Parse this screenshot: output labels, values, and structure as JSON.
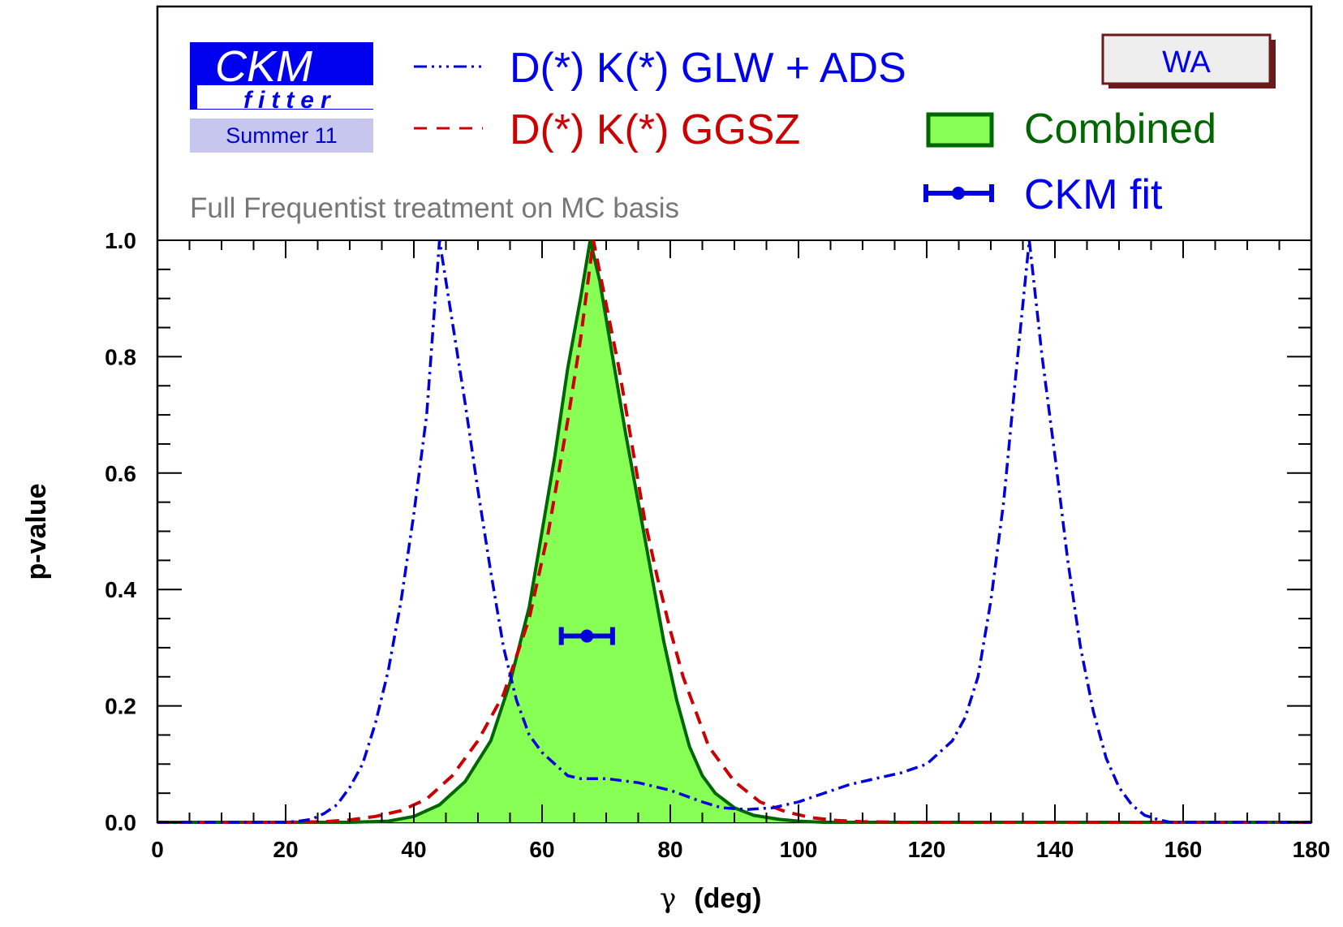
{
  "chart_data": {
    "type": "line",
    "xlabel_symbol": "γ",
    "xlabel_unit": "(deg)",
    "ylabel": "p-value",
    "xlim": [
      0,
      180
    ],
    "ylim": [
      0,
      1.0
    ],
    "xticks": [
      "0",
      "20",
      "40",
      "60",
      "80",
      "100",
      "120",
      "140",
      "160",
      "180"
    ],
    "yticks": [
      "0.0",
      "0.2",
      "0.4",
      "0.6",
      "0.8",
      "1.0"
    ],
    "grid": false,
    "logo": {
      "top": "CKM",
      "bottom": "fitter",
      "badge": "Summer 11"
    },
    "tag": "WA",
    "note": "Full Frequentist treatment on MC basis",
    "legend_position": "top",
    "series": [
      {
        "name": "D(*) K(*) GLW + ADS",
        "style": "dash-dot",
        "color": "#0000dd",
        "points": [
          [
            0,
            0
          ],
          [
            20,
            0
          ],
          [
            22,
            0.002
          ],
          [
            24,
            0.005
          ],
          [
            26,
            0.015
          ],
          [
            28,
            0.03
          ],
          [
            30,
            0.06
          ],
          [
            32,
            0.1
          ],
          [
            34,
            0.17
          ],
          [
            36,
            0.26
          ],
          [
            38,
            0.38
          ],
          [
            40,
            0.53
          ],
          [
            42,
            0.7
          ],
          [
            43,
            0.85
          ],
          [
            44,
            1.0
          ],
          [
            45,
            0.93
          ],
          [
            46,
            0.86
          ],
          [
            48,
            0.72
          ],
          [
            50,
            0.57
          ],
          [
            52,
            0.43
          ],
          [
            54,
            0.3
          ],
          [
            56,
            0.21
          ],
          [
            58,
            0.15
          ],
          [
            60,
            0.12
          ],
          [
            62,
            0.1
          ],
          [
            64,
            0.08
          ],
          [
            66,
            0.075
          ],
          [
            70,
            0.075
          ],
          [
            75,
            0.068
          ],
          [
            80,
            0.055
          ],
          [
            85,
            0.035
          ],
          [
            88,
            0.025
          ],
          [
            92,
            0.022
          ],
          [
            96,
            0.025
          ],
          [
            100,
            0.035
          ],
          [
            104,
            0.05
          ],
          [
            108,
            0.065
          ],
          [
            112,
            0.075
          ],
          [
            116,
            0.085
          ],
          [
            120,
            0.1
          ],
          [
            124,
            0.14
          ],
          [
            126,
            0.18
          ],
          [
            128,
            0.25
          ],
          [
            130,
            0.38
          ],
          [
            132,
            0.55
          ],
          [
            134,
            0.78
          ],
          [
            136,
            1.0
          ],
          [
            137,
            0.9
          ],
          [
            138,
            0.8
          ],
          [
            140,
            0.63
          ],
          [
            142,
            0.45
          ],
          [
            144,
            0.3
          ],
          [
            146,
            0.19
          ],
          [
            148,
            0.11
          ],
          [
            150,
            0.06
          ],
          [
            152,
            0.03
          ],
          [
            154,
            0.012
          ],
          [
            156,
            0.005
          ],
          [
            158,
            0
          ],
          [
            180,
            0
          ]
        ]
      },
      {
        "name": "D(*) K(*) GGSZ",
        "style": "dashed",
        "color": "#cc0000",
        "points": [
          [
            0,
            0
          ],
          [
            20,
            0
          ],
          [
            26,
            0.001
          ],
          [
            30,
            0.004
          ],
          [
            34,
            0.01
          ],
          [
            38,
            0.02
          ],
          [
            42,
            0.04
          ],
          [
            46,
            0.08
          ],
          [
            50,
            0.14
          ],
          [
            54,
            0.22
          ],
          [
            58,
            0.35
          ],
          [
            61,
            0.5
          ],
          [
            64,
            0.69
          ],
          [
            66,
            0.83
          ],
          [
            68,
            1.0
          ],
          [
            70,
            0.89
          ],
          [
            72,
            0.78
          ],
          [
            74,
            0.65
          ],
          [
            76,
            0.52
          ],
          [
            78,
            0.42
          ],
          [
            80,
            0.33
          ],
          [
            82,
            0.25
          ],
          [
            84,
            0.19
          ],
          [
            86,
            0.13
          ],
          [
            90,
            0.07
          ],
          [
            94,
            0.035
          ],
          [
            98,
            0.018
          ],
          [
            102,
            0.008
          ],
          [
            106,
            0.003
          ],
          [
            110,
            0.001
          ],
          [
            116,
            0
          ],
          [
            180,
            0
          ]
        ]
      },
      {
        "name": "Combined",
        "style": "filled",
        "color": "#006600",
        "fill": "#88ff55",
        "points": [
          [
            0,
            0
          ],
          [
            30,
            0
          ],
          [
            36,
            0.002
          ],
          [
            40,
            0.01
          ],
          [
            44,
            0.03
          ],
          [
            48,
            0.07
          ],
          [
            52,
            0.14
          ],
          [
            55,
            0.24
          ],
          [
            58,
            0.37
          ],
          [
            60,
            0.5
          ],
          [
            62,
            0.63
          ],
          [
            64,
            0.78
          ],
          [
            66,
            0.9
          ],
          [
            67.5,
            1.0
          ],
          [
            69,
            0.93
          ],
          [
            71,
            0.8
          ],
          [
            73,
            0.67
          ],
          [
            75,
            0.55
          ],
          [
            77,
            0.43
          ],
          [
            79,
            0.31
          ],
          [
            81,
            0.21
          ],
          [
            83,
            0.13
          ],
          [
            85,
            0.08
          ],
          [
            87,
            0.05
          ],
          [
            90,
            0.025
          ],
          [
            93,
            0.012
          ],
          [
            97,
            0.005
          ],
          [
            100,
            0.002
          ],
          [
            104,
            0
          ],
          [
            180,
            0
          ]
        ]
      }
    ],
    "ckm_fit": {
      "name": "CKM fit",
      "value": 67.0,
      "low": 63.0,
      "high": 71.0,
      "y": 0.32,
      "color": "#0000dd"
    }
  }
}
